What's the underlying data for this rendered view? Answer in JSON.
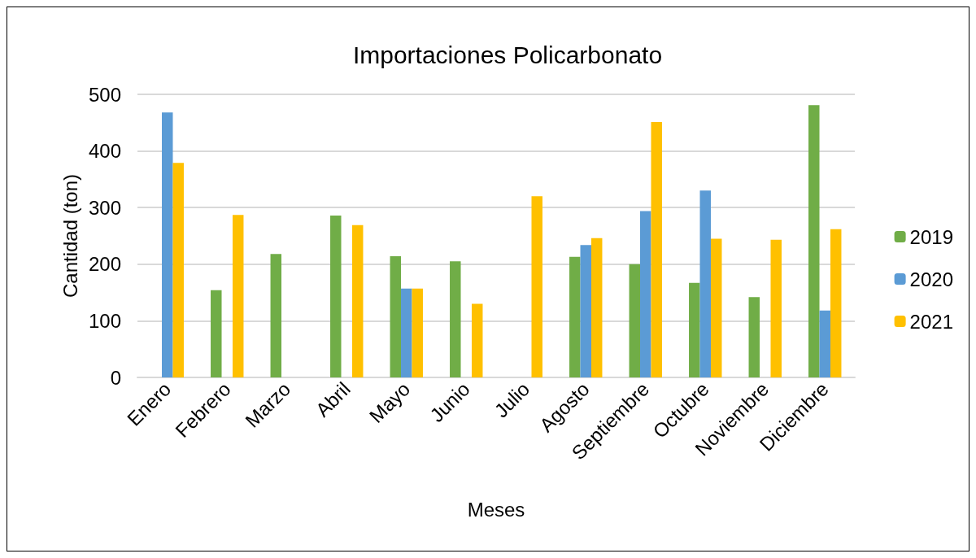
{
  "chart_data": {
    "type": "bar",
    "title": "Importaciones Policarbonato",
    "xlabel": "Meses",
    "ylabel": "Cantidad (ton)",
    "categories": [
      "Enero",
      "Febrero",
      "Marzo",
      "Abril",
      "Mayo",
      "Junio",
      "Julio",
      "Agosto",
      "Septiembre",
      "Octubre",
      "Noviembre",
      "Diciembre"
    ],
    "series": [
      {
        "name": "2019",
        "color": "#70ad47",
        "values": [
          null,
          154,
          218,
          286,
          214,
          205,
          null,
          213,
          200,
          167,
          142,
          481
        ]
      },
      {
        "name": "2020",
        "color": "#5b9bd5",
        "values": [
          468,
          null,
          null,
          null,
          157,
          null,
          null,
          234,
          294,
          330,
          null,
          118
        ]
      },
      {
        "name": "2021",
        "color": "#ffc000",
        "values": [
          379,
          287,
          null,
          269,
          157,
          130,
          320,
          246,
          451,
          245,
          243,
          262
        ]
      }
    ],
    "ylim": [
      0,
      500
    ],
    "yticks": [
      0,
      100,
      200,
      300,
      400,
      500
    ],
    "grid": "y",
    "legend": "right"
  }
}
